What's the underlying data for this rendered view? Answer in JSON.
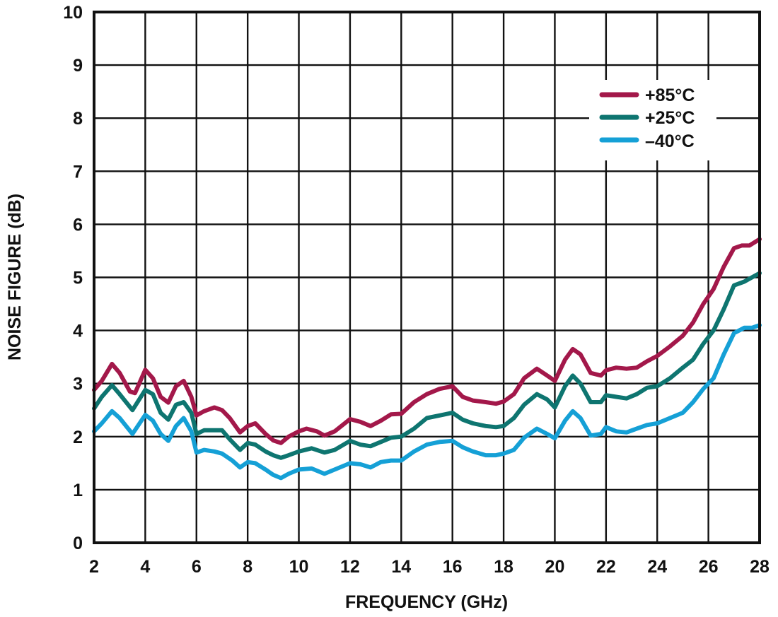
{
  "chart_data": {
    "type": "line",
    "title": "",
    "xlabel": "FREQUENCY (GHz)",
    "ylabel": "NOISE FIGURE (dB)",
    "xlim": [
      2,
      28
    ],
    "ylim": [
      0,
      10
    ],
    "xticks": [
      2,
      4,
      6,
      8,
      10,
      12,
      14,
      16,
      18,
      20,
      22,
      24,
      26,
      28
    ],
    "yticks": [
      0,
      1,
      2,
      3,
      4,
      5,
      6,
      7,
      8,
      9,
      10
    ],
    "grid": true,
    "legend_position": "upper right",
    "series": [
      {
        "name": "+85°C",
        "color": "#A3184A",
        "x": [
          2.0,
          2.3,
          2.7,
          3.0,
          3.4,
          3.6,
          4.0,
          4.3,
          4.6,
          4.9,
          5.2,
          5.5,
          5.8,
          6.0,
          6.3,
          6.7,
          7.0,
          7.3,
          7.7,
          8.0,
          8.3,
          8.7,
          9.0,
          9.3,
          9.6,
          10.0,
          10.3,
          10.7,
          11.0,
          11.4,
          12.0,
          12.4,
          12.8,
          13.2,
          13.6,
          14.0,
          14.5,
          15.0,
          15.5,
          16.0,
          16.4,
          16.8,
          17.3,
          17.7,
          18.0,
          18.4,
          18.8,
          19.3,
          19.7,
          20.0,
          20.4,
          20.7,
          21.0,
          21.4,
          21.8,
          22.0,
          22.4,
          22.8,
          23.2,
          23.6,
          24.0,
          24.5,
          25.0,
          25.4,
          25.8,
          26.2,
          26.6,
          27.0,
          27.3,
          27.6,
          28.0
        ],
        "y": [
          2.88,
          3.05,
          3.37,
          3.2,
          2.85,
          2.82,
          3.26,
          3.1,
          2.75,
          2.64,
          2.95,
          3.05,
          2.75,
          2.4,
          2.48,
          2.55,
          2.5,
          2.35,
          2.08,
          2.2,
          2.25,
          2.05,
          1.93,
          1.88,
          2.0,
          2.1,
          2.15,
          2.1,
          2.02,
          2.1,
          2.33,
          2.28,
          2.2,
          2.3,
          2.42,
          2.43,
          2.65,
          2.8,
          2.9,
          2.95,
          2.75,
          2.68,
          2.65,
          2.62,
          2.66,
          2.8,
          3.1,
          3.28,
          3.15,
          3.05,
          3.45,
          3.65,
          3.55,
          3.2,
          3.15,
          3.25,
          3.3,
          3.28,
          3.3,
          3.42,
          3.52,
          3.7,
          3.9,
          4.15,
          4.5,
          4.78,
          5.2,
          5.55,
          5.6,
          5.6,
          5.72
        ]
      },
      {
        "name": "+25°C",
        "color": "#0E7570",
        "x": [
          2.0,
          2.3,
          2.7,
          3.0,
          3.5,
          4.0,
          4.3,
          4.6,
          4.9,
          5.2,
          5.5,
          5.8,
          6.0,
          6.3,
          6.7,
          7.0,
          7.3,
          7.7,
          8.0,
          8.3,
          8.7,
          9.0,
          9.3,
          9.6,
          10.0,
          10.5,
          11.0,
          11.4,
          12.0,
          12.4,
          12.8,
          13.2,
          13.6,
          14.0,
          14.5,
          15.0,
          15.5,
          16.0,
          16.4,
          16.8,
          17.3,
          17.7,
          18.0,
          18.4,
          18.8,
          19.3,
          19.7,
          20.0,
          20.4,
          20.7,
          21.0,
          21.4,
          21.8,
          22.0,
          22.4,
          22.8,
          23.2,
          23.6,
          24.0,
          24.5,
          25.0,
          25.4,
          25.8,
          26.2,
          26.6,
          27.0,
          27.4,
          27.7,
          28.0
        ],
        "y": [
          2.53,
          2.75,
          2.97,
          2.8,
          2.5,
          2.88,
          2.8,
          2.45,
          2.32,
          2.6,
          2.65,
          2.45,
          2.05,
          2.12,
          2.12,
          2.12,
          1.95,
          1.75,
          1.88,
          1.85,
          1.72,
          1.65,
          1.6,
          1.65,
          1.72,
          1.78,
          1.7,
          1.75,
          1.92,
          1.85,
          1.82,
          1.9,
          1.98,
          2.0,
          2.15,
          2.35,
          2.4,
          2.45,
          2.32,
          2.25,
          2.2,
          2.18,
          2.2,
          2.35,
          2.6,
          2.8,
          2.7,
          2.55,
          2.95,
          3.15,
          3.0,
          2.65,
          2.65,
          2.78,
          2.75,
          2.72,
          2.8,
          2.92,
          2.95,
          3.1,
          3.3,
          3.45,
          3.75,
          4.0,
          4.4,
          4.85,
          4.92,
          5.0,
          5.08
        ]
      },
      {
        "name": "–40°C",
        "color": "#15A0D6",
        "x": [
          2.0,
          2.3,
          2.7,
          3.0,
          3.5,
          4.0,
          4.3,
          4.6,
          4.9,
          5.2,
          5.5,
          5.8,
          6.0,
          6.3,
          6.7,
          7.0,
          7.4,
          7.7,
          8.0,
          8.3,
          8.7,
          9.0,
          9.3,
          9.6,
          10.0,
          10.5,
          11.0,
          11.4,
          12.0,
          12.4,
          12.8,
          13.2,
          13.6,
          14.0,
          14.5,
          15.0,
          15.5,
          16.0,
          16.4,
          16.8,
          17.3,
          17.7,
          18.0,
          18.4,
          18.8,
          19.3,
          19.7,
          20.0,
          20.4,
          20.7,
          21.0,
          21.4,
          21.8,
          22.0,
          22.4,
          22.8,
          23.2,
          23.6,
          24.0,
          24.5,
          25.0,
          25.4,
          25.8,
          26.2,
          26.6,
          27.0,
          27.4,
          27.7,
          28.0
        ],
        "y": [
          2.1,
          2.25,
          2.48,
          2.35,
          2.05,
          2.41,
          2.3,
          2.05,
          1.92,
          2.2,
          2.35,
          2.1,
          1.7,
          1.75,
          1.72,
          1.68,
          1.55,
          1.42,
          1.52,
          1.5,
          1.38,
          1.28,
          1.22,
          1.3,
          1.38,
          1.4,
          1.3,
          1.38,
          1.5,
          1.48,
          1.42,
          1.52,
          1.55,
          1.55,
          1.72,
          1.85,
          1.9,
          1.92,
          1.8,
          1.72,
          1.65,
          1.65,
          1.68,
          1.75,
          1.98,
          2.15,
          2.05,
          1.97,
          2.3,
          2.48,
          2.35,
          2.02,
          2.05,
          2.18,
          2.1,
          2.08,
          2.15,
          2.22,
          2.25,
          2.35,
          2.45,
          2.65,
          2.9,
          3.1,
          3.55,
          3.95,
          4.05,
          4.05,
          4.1
        ]
      }
    ]
  },
  "axes": {
    "x_title": "FREQUENCY (GHz)",
    "y_title": "NOISE FIGURE (dB)",
    "x_tick_labels": [
      "2",
      "4",
      "6",
      "8",
      "10",
      "12",
      "14",
      "16",
      "18",
      "20",
      "22",
      "24",
      "26",
      "28"
    ],
    "y_tick_labels": [
      "0",
      "1",
      "2",
      "3",
      "4",
      "5",
      "6",
      "7",
      "8",
      "9",
      "10"
    ]
  },
  "legend": {
    "items": [
      {
        "label": "+85°C",
        "color": "#A3184A"
      },
      {
        "label": "+25°C",
        "color": "#0E7570"
      },
      {
        "label": "–40°C",
        "color": "#15A0D6"
      }
    ]
  }
}
